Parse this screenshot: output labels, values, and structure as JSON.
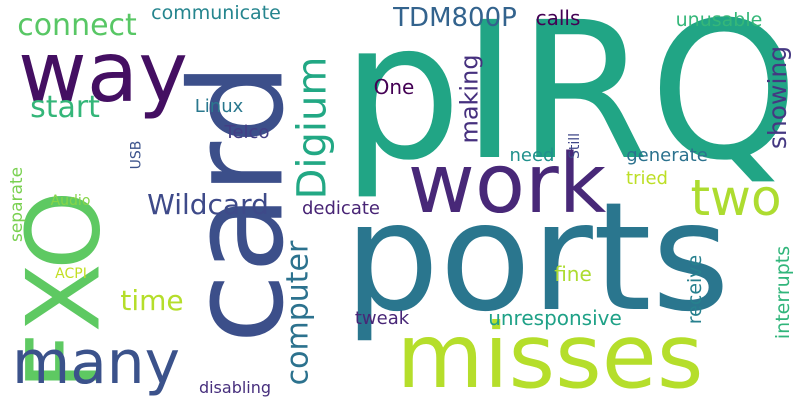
{
  "background": "#ffffff",
  "words": [
    {
      "key": "pirq",
      "text": "pIRQ",
      "color": "#21a585",
      "vertical": false
    },
    {
      "key": "card",
      "text": "card",
      "color": "#3c4f8a",
      "vertical": true
    },
    {
      "key": "ports",
      "text": "ports",
      "color": "#2a768e",
      "vertical": false
    },
    {
      "key": "misses",
      "text": "misses",
      "color": "#b5de2b",
      "vertical": false
    },
    {
      "key": "fxo",
      "text": "FXO",
      "color": "#5ec962",
      "vertical": true
    },
    {
      "key": "way",
      "text": "way",
      "color": "#440f62",
      "vertical": false
    },
    {
      "key": "work",
      "text": "work",
      "color": "#482878",
      "vertical": false
    },
    {
      "key": "many",
      "text": "many",
      "color": "#3b528b",
      "vertical": false
    },
    {
      "key": "two",
      "text": "two",
      "color": "#addc30",
      "vertical": false
    },
    {
      "key": "digium",
      "text": "Digium",
      "color": "#22a884",
      "vertical": true
    },
    {
      "key": "computer",
      "text": "computer",
      "color": "#2c728e",
      "vertical": true
    },
    {
      "key": "connect",
      "text": "connect",
      "color": "#58c765",
      "vertical": false
    },
    {
      "key": "tdm800p",
      "text": "TDM800P",
      "color": "#33638d",
      "vertical": false
    },
    {
      "key": "wildcard",
      "text": "Wildcard",
      "color": "#3e4a89",
      "vertical": false
    },
    {
      "key": "start",
      "text": "start",
      "color": "#34b679",
      "vertical": false
    },
    {
      "key": "time",
      "text": "time",
      "color": "#b5de2b",
      "vertical": false
    },
    {
      "key": "showing",
      "text": "showing",
      "color": "#453882",
      "vertical": true
    },
    {
      "key": "making",
      "text": "making",
      "color": "#46307e",
      "vertical": true
    },
    {
      "key": "communicate",
      "text": "communicate",
      "color": "#25858e",
      "vertical": false
    },
    {
      "key": "calls",
      "text": "calls",
      "color": "#440154",
      "vertical": false
    },
    {
      "key": "unusable",
      "text": "unusable",
      "color": "#35b779",
      "vertical": false
    },
    {
      "key": "one",
      "text": "One",
      "color": "#440154",
      "vertical": false
    },
    {
      "key": "linux",
      "text": "Linux",
      "color": "#2a788e",
      "vertical": false
    },
    {
      "key": "telco",
      "text": "Telco",
      "color": "#433e85",
      "vertical": false
    },
    {
      "key": "need",
      "text": "need",
      "color": "#21918c",
      "vertical": false
    },
    {
      "key": "generate",
      "text": "generate",
      "color": "#2c728e",
      "vertical": false
    },
    {
      "key": "tried",
      "text": "tried",
      "color": "#bddf26",
      "vertical": false
    },
    {
      "key": "dedicate",
      "text": "dedicate",
      "color": "#482475",
      "vertical": false
    },
    {
      "key": "separate",
      "text": "separate",
      "color": "#7ad151",
      "vertical": true
    },
    {
      "key": "audio",
      "text": "Audio",
      "color": "#86d549",
      "vertical": false
    },
    {
      "key": "acpi",
      "text": "ACPI",
      "color": "#c2df23",
      "vertical": false
    },
    {
      "key": "usb",
      "text": "USB",
      "color": "#3b528b",
      "vertical": true
    },
    {
      "key": "still",
      "text": "Still",
      "color": "#3f4788",
      "vertical": true
    },
    {
      "key": "fine",
      "text": "fine",
      "color": "#addc30",
      "vertical": false
    },
    {
      "key": "tweak",
      "text": "tweak",
      "color": "#482677",
      "vertical": false
    },
    {
      "key": "unresponsive",
      "text": "unresponsive",
      "color": "#1fa187",
      "vertical": false
    },
    {
      "key": "receive",
      "text": "receive",
      "color": "#27808e",
      "vertical": true
    },
    {
      "key": "interrupts",
      "text": "interrupts",
      "color": "#31b57b",
      "vertical": true
    },
    {
      "key": "disabling",
      "text": "disabling",
      "color": "#472f7d",
      "vertical": false
    }
  ]
}
